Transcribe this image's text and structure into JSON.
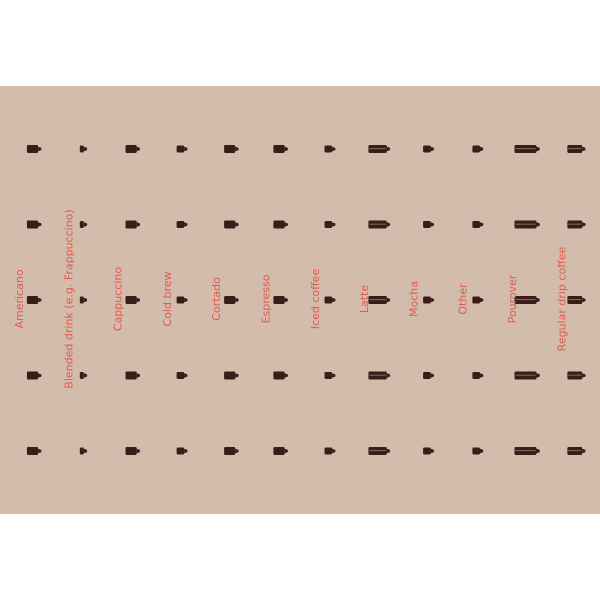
{
  "colors": {
    "panel_background": "#d3bcab",
    "cup": "#3b1c18",
    "label": "#e05a4e"
  },
  "icons": {
    "mark": "coffee-cup-icon"
  },
  "chart_data": {
    "type": "pictogram",
    "categories": [
      "Americano",
      "Blended drink (e.g. Frappuccino)",
      "Cappuccino",
      "Cold brew",
      "Cortado",
      "Espresso",
      "Iced coffee",
      "Latte",
      "Mocha",
      "Other",
      "Pourover",
      "Regular drip coffee"
    ],
    "cup_size_rank": [
      3,
      1,
      3,
      2,
      3,
      3,
      2,
      5,
      2,
      2,
      6,
      4
    ],
    "rows": 5,
    "title": "",
    "xlabel": "",
    "ylabel": "",
    "grid": false,
    "legend": false
  }
}
